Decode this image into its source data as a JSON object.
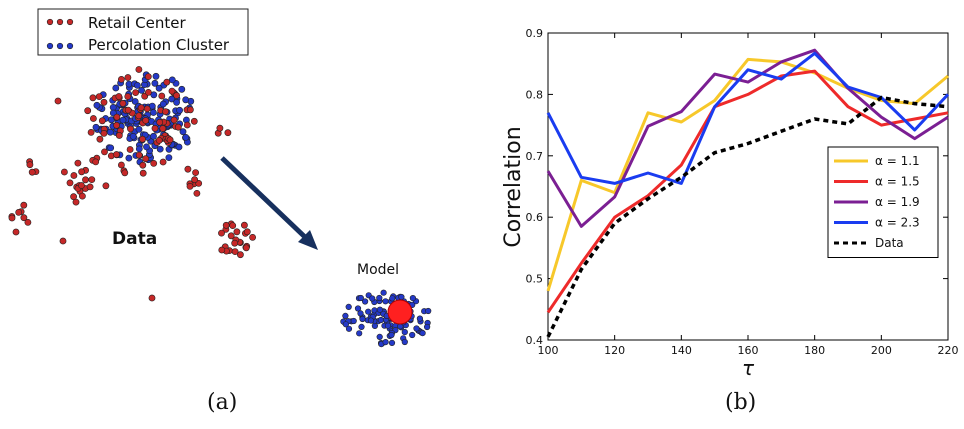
{
  "panel_a": {
    "caption": "(a)",
    "legend": [
      {
        "label": "Retail Center",
        "color": "#b81f24"
      },
      {
        "label": "Percolation Cluster",
        "color": "#1f2fb8"
      }
    ],
    "data_label": "Data",
    "model_label": "Model",
    "colors": {
      "retail": "#c62828",
      "cluster": "#2439c8",
      "center": "#ff2020",
      "arrow": "#17305e"
    }
  },
  "panel_b": {
    "caption": "(b)"
  },
  "chart_data": {
    "type": "line",
    "xlabel": "τ",
    "ylabel": "Correlation",
    "xlim": [
      100,
      220
    ],
    "ylim": [
      0.4,
      0.9
    ],
    "xticks": [
      "100",
      "120",
      "140",
      "160",
      "180",
      "200",
      "220"
    ],
    "yticks": [
      "0.4",
      "0.5",
      "0.6",
      "0.7",
      "0.8",
      "0.9"
    ],
    "legend_position": "center-right",
    "grid": false,
    "x": [
      100,
      110,
      120,
      130,
      140,
      150,
      160,
      170,
      180,
      190,
      200,
      210,
      220
    ],
    "series": [
      {
        "name": "α = 1.1",
        "color": "#f7c82a",
        "dash": false,
        "values": [
          0.48,
          0.66,
          0.64,
          0.77,
          0.755,
          0.79,
          0.857,
          0.853,
          0.835,
          0.81,
          0.79,
          0.785,
          0.83
        ]
      },
      {
        "name": "α = 1.5",
        "color": "#ee2a2a",
        "dash": false,
        "values": [
          0.445,
          0.525,
          0.6,
          0.635,
          0.685,
          0.78,
          0.8,
          0.83,
          0.838,
          0.78,
          0.75,
          0.76,
          0.77
        ]
      },
      {
        "name": "α = 1.9",
        "color": "#7b1f93",
        "dash": false,
        "values": [
          0.675,
          0.585,
          0.633,
          0.748,
          0.772,
          0.833,
          0.82,
          0.853,
          0.872,
          0.81,
          0.763,
          0.728,
          0.763
        ]
      },
      {
        "name": "α = 2.3",
        "color": "#1a3cf0",
        "dash": false,
        "values": [
          0.77,
          0.665,
          0.655,
          0.672,
          0.655,
          0.78,
          0.84,
          0.825,
          0.867,
          0.812,
          0.795,
          0.742,
          0.8
        ]
      },
      {
        "name": "Data",
        "color": "#000000",
        "dash": true,
        "values": [
          0.405,
          0.515,
          0.59,
          0.63,
          0.665,
          0.705,
          0.72,
          0.74,
          0.76,
          0.752,
          0.795,
          0.785,
          0.78
        ]
      }
    ]
  }
}
